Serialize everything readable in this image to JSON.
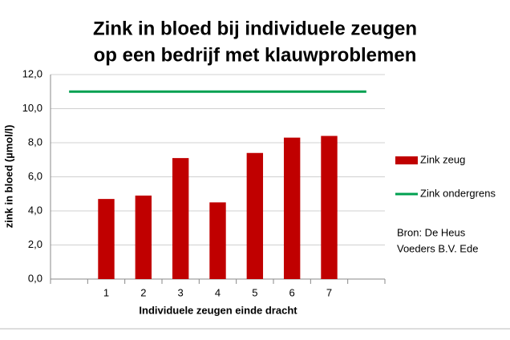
{
  "chart_data": {
    "type": "bar",
    "title": [
      "Zink in bloed bij individuele zeugen",
      "op een bedrijf met klauwproblemen"
    ],
    "x_label": "Individuele zeugen einde dracht",
    "y_label": "zink in bloed (µmol/l)",
    "categories": [
      null,
      "1",
      "2",
      "3",
      "4",
      "5",
      "6",
      "7",
      null
    ],
    "series": [
      {
        "name": "Zink zeug",
        "type": "bar",
        "color": "#c00000",
        "values": [
          null,
          4.7,
          4.9,
          7.1,
          4.5,
          7.4,
          8.3,
          8.4,
          null
        ]
      },
      {
        "name": "Zink ondergrens",
        "type": "line",
        "color": "#00a050",
        "values": [
          11,
          11,
          11,
          11,
          11,
          11,
          11,
          11,
          11
        ]
      }
    ],
    "ylim": [
      0,
      12
    ],
    "yticks": [
      {
        "value": 0,
        "label": "0,0"
      },
      {
        "value": 2,
        "label": "2,0"
      },
      {
        "value": 4,
        "label": "4,0"
      },
      {
        "value": 6,
        "label": "6,0"
      },
      {
        "value": 8,
        "label": "8,0"
      },
      {
        "value": 10,
        "label": "10,0"
      },
      {
        "value": 12,
        "label": "12,0"
      }
    ],
    "grid": true,
    "legend": "right",
    "source": [
      "Bron: De Heus",
      "Voeders B.V.  Ede"
    ]
  }
}
